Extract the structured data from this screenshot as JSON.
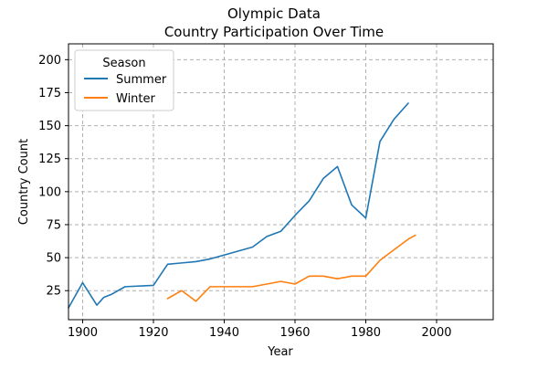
{
  "chart_data": {
    "type": "line",
    "title": "Olympic Data",
    "subtitle": "Country Participation Over Time",
    "xlabel": "Year",
    "ylabel": "Country Count",
    "xlim": [
      1896,
      2016
    ],
    "ylim": [
      3,
      212
    ],
    "xticks": [
      1900,
      1920,
      1940,
      1960,
      1980,
      2000
    ],
    "yticks": [
      25,
      50,
      75,
      100,
      125,
      150,
      175,
      200
    ],
    "grid": true,
    "legend": {
      "title": "Season",
      "position": "top-left"
    },
    "series": [
      {
        "name": "Summer",
        "color": "#1f77b4",
        "x": [
          1896,
          1900,
          1904,
          1906,
          1908,
          1912,
          1920,
          1924,
          1928,
          1932,
          1936,
          1948,
          1952,
          1956,
          1960,
          1964,
          1968,
          1972,
          1976,
          1980,
          1984,
          1988,
          1992
        ],
        "y": [
          12,
          31,
          14,
          20,
          22,
          28,
          29,
          45,
          46,
          47,
          49,
          58,
          66,
          70,
          82,
          93,
          110,
          119,
          90,
          80,
          138,
          155,
          167
        ]
      },
      {
        "name": "Winter",
        "color": "#ff7f0e",
        "x": [
          1924,
          1928,
          1932,
          1936,
          1948,
          1952,
          1956,
          1960,
          1964,
          1968,
          1972,
          1976,
          1980,
          1984,
          1988,
          1992,
          1994
        ],
        "y": [
          19,
          25,
          17,
          28,
          28,
          30,
          32,
          30,
          36,
          36,
          34,
          36,
          36,
          48,
          56,
          64,
          67
        ]
      }
    ]
  }
}
